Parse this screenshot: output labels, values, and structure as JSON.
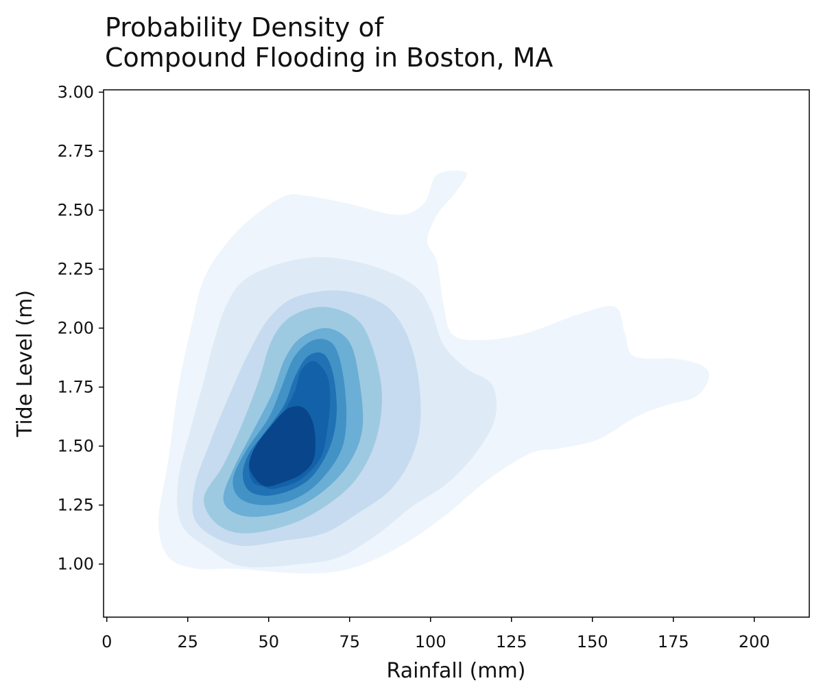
{
  "chart_data": {
    "type": "kde",
    "title_lines": [
      "Probability Density of",
      "Compound Flooding in Boston, MA"
    ],
    "xlabel": "Rainfall (mm)",
    "ylabel": "Tide Level (m)",
    "xlim": [
      -1,
      217
    ],
    "ylim": [
      0.775,
      3.01
    ],
    "xticks": [
      0,
      25,
      50,
      75,
      100,
      125,
      150,
      175,
      200
    ],
    "yticks": [
      1.0,
      1.25,
      1.5,
      1.75,
      2.0,
      2.25,
      2.5,
      2.75,
      3.0
    ],
    "ytick_labels": [
      "1.00",
      "1.25",
      "1.50",
      "1.75",
      "2.00",
      "2.25",
      "2.50",
      "2.75",
      "3.00"
    ],
    "colormap": "Blues",
    "levels": [
      {
        "color": "#eff5fc",
        "contour": [
          [
            40,
            0.98
          ],
          [
            60,
            0.96
          ],
          [
            75,
            0.98
          ],
          [
            90,
            1.07
          ],
          [
            104,
            1.2
          ],
          [
            118,
            1.36
          ],
          [
            131,
            1.47
          ],
          [
            140,
            1.49
          ],
          [
            152,
            1.53
          ],
          [
            163,
            1.62
          ],
          [
            172,
            1.67
          ],
          [
            182,
            1.71
          ],
          [
            186,
            1.79
          ],
          [
            184,
            1.84
          ],
          [
            176,
            1.87
          ],
          [
            163,
            1.88
          ],
          [
            160,
            1.98
          ],
          [
            157,
            2.09
          ],
          [
            146,
            2.06
          ],
          [
            130,
            1.98
          ],
          [
            117,
            1.95
          ],
          [
            107,
            1.97
          ],
          [
            104,
            2.1
          ],
          [
            102,
            2.28
          ],
          [
            99,
            2.37
          ],
          [
            102,
            2.48
          ],
          [
            108,
            2.58
          ],
          [
            111,
            2.66
          ],
          [
            102,
            2.65
          ],
          [
            98,
            2.53
          ],
          [
            90,
            2.48
          ],
          [
            74,
            2.53
          ],
          [
            62,
            2.56
          ],
          [
            55,
            2.56
          ],
          [
            45,
            2.47
          ],
          [
            37,
            2.36
          ],
          [
            30,
            2.21
          ],
          [
            26,
            2.0
          ],
          [
            22,
            1.74
          ],
          [
            19,
            1.44
          ],
          [
            16,
            1.18
          ],
          [
            19,
            1.03
          ],
          [
            28,
            0.98
          ]
        ]
      },
      {
        "color": "#deebf7",
        "contour": [
          [
            42,
            0.99
          ],
          [
            60,
            1.0
          ],
          [
            72,
            1.03
          ],
          [
            84,
            1.13
          ],
          [
            94,
            1.24
          ],
          [
            105,
            1.34
          ],
          [
            114,
            1.47
          ],
          [
            120,
            1.62
          ],
          [
            119,
            1.76
          ],
          [
            111,
            1.83
          ],
          [
            104,
            1.93
          ],
          [
            100,
            2.08
          ],
          [
            95,
            2.18
          ],
          [
            83,
            2.26
          ],
          [
            68,
            2.3
          ],
          [
            55,
            2.28
          ],
          [
            43,
            2.21
          ],
          [
            37,
            2.1
          ],
          [
            33,
            1.94
          ],
          [
            30,
            1.78
          ],
          [
            26,
            1.58
          ],
          [
            22,
            1.35
          ],
          [
            23,
            1.17
          ],
          [
            31,
            1.07
          ]
        ]
      },
      {
        "color": "#c6dbef",
        "contour": [
          [
            40,
            1.08
          ],
          [
            55,
            1.1
          ],
          [
            67,
            1.13
          ],
          [
            77,
            1.21
          ],
          [
            88,
            1.32
          ],
          [
            95,
            1.48
          ],
          [
            97,
            1.66
          ],
          [
            95,
            1.88
          ],
          [
            90,
            2.04
          ],
          [
            83,
            2.12
          ],
          [
            71,
            2.16
          ],
          [
            58,
            2.13
          ],
          [
            50,
            2.04
          ],
          [
            44,
            1.9
          ],
          [
            38,
            1.72
          ],
          [
            32,
            1.52
          ],
          [
            27,
            1.32
          ],
          [
            28,
            1.17
          ]
        ]
      },
      {
        "color": "#9ecae1",
        "contour": [
          [
            43,
            1.13
          ],
          [
            57,
            1.17
          ],
          [
            68,
            1.25
          ],
          [
            77,
            1.36
          ],
          [
            83,
            1.52
          ],
          [
            85,
            1.72
          ],
          [
            82,
            1.92
          ],
          [
            77,
            2.04
          ],
          [
            67,
            2.09
          ],
          [
            57,
            2.05
          ],
          [
            51,
            1.95
          ],
          [
            47,
            1.78
          ],
          [
            42,
            1.6
          ],
          [
            36,
            1.42
          ],
          [
            30,
            1.28
          ],
          [
            34,
            1.17
          ]
        ]
      },
      {
        "color": "#6baed6",
        "contour": [
          [
            46,
            1.2
          ],
          [
            57,
            1.23
          ],
          [
            67,
            1.31
          ],
          [
            75,
            1.43
          ],
          [
            79,
            1.58
          ],
          [
            78,
            1.78
          ],
          [
            75,
            1.94
          ],
          [
            68,
            2.0
          ],
          [
            60,
            1.96
          ],
          [
            55,
            1.87
          ],
          [
            51,
            1.72
          ],
          [
            45,
            1.56
          ],
          [
            39,
            1.4
          ],
          [
            36,
            1.28
          ],
          [
            39,
            1.22
          ]
        ]
      },
      {
        "color": "#4292c6",
        "contour": [
          [
            48,
            1.25
          ],
          [
            57,
            1.27
          ],
          [
            65,
            1.34
          ],
          [
            72,
            1.47
          ],
          [
            74,
            1.61
          ],
          [
            73,
            1.8
          ],
          [
            70,
            1.93
          ],
          [
            64,
            1.95
          ],
          [
            58,
            1.88
          ],
          [
            54,
            1.75
          ],
          [
            50,
            1.62
          ],
          [
            43,
            1.48
          ],
          [
            39,
            1.36
          ],
          [
            41,
            1.28
          ]
        ]
      },
      {
        "color": "#2171b5",
        "contour": [
          [
            50,
            1.29
          ],
          [
            58,
            1.32
          ],
          [
            64,
            1.38
          ],
          [
            69,
            1.5
          ],
          [
            71,
            1.64
          ],
          [
            70,
            1.8
          ],
          [
            67,
            1.89
          ],
          [
            62,
            1.88
          ],
          [
            58,
            1.79
          ],
          [
            55,
            1.68
          ],
          [
            50,
            1.58
          ],
          [
            44,
            1.47
          ],
          [
            42,
            1.38
          ],
          [
            44,
            1.31
          ]
        ]
      },
      {
        "color": "#1361a8",
        "contour": [
          [
            52,
            1.32
          ],
          [
            60,
            1.36
          ],
          [
            66,
            1.45
          ],
          [
            68,
            1.56
          ],
          [
            69,
            1.7
          ],
          [
            68,
            1.8
          ],
          [
            64,
            1.86
          ],
          [
            60,
            1.82
          ],
          [
            58,
            1.73
          ],
          [
            54,
            1.63
          ],
          [
            48,
            1.52
          ],
          [
            44,
            1.43
          ],
          [
            45,
            1.35
          ],
          [
            48,
            1.33
          ]
        ]
      },
      {
        "color": "#08458a",
        "contour": [
          [
            53,
            1.34
          ],
          [
            60,
            1.38
          ],
          [
            64,
            1.45
          ],
          [
            64,
            1.58
          ],
          [
            61,
            1.66
          ],
          [
            56,
            1.66
          ],
          [
            51,
            1.59
          ],
          [
            46,
            1.5
          ],
          [
            44,
            1.42
          ],
          [
            46,
            1.36
          ],
          [
            49,
            1.33
          ]
        ]
      }
    ]
  }
}
